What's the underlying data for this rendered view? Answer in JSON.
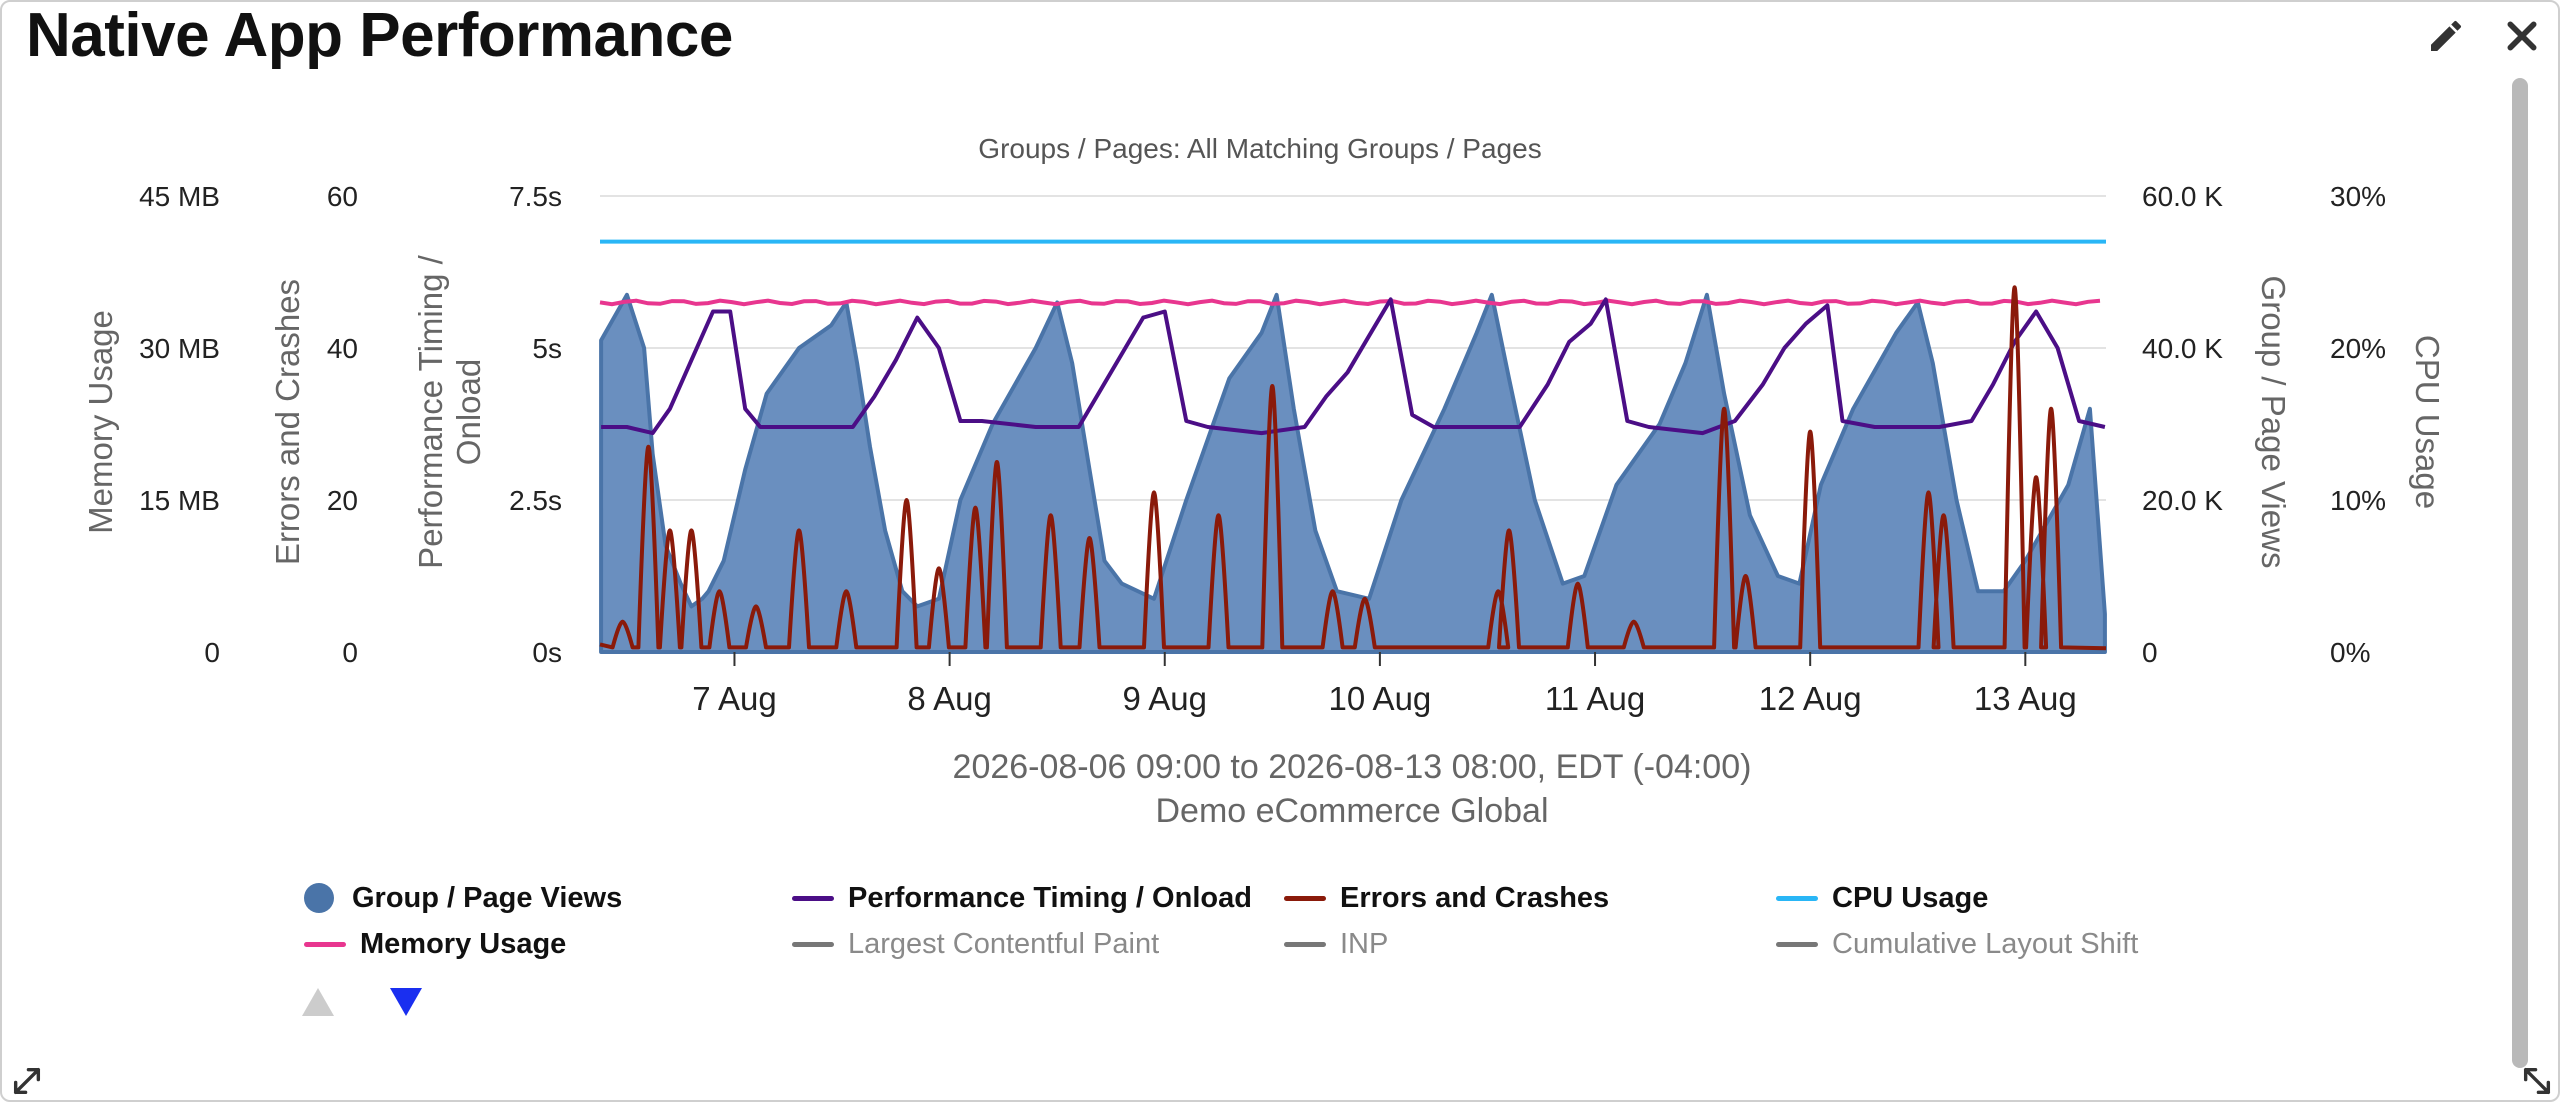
{
  "widget": {
    "title": "Native App Performance",
    "edit_icon": "pencil-icon",
    "close_icon": "close-icon"
  },
  "chart_data": {
    "type": "area",
    "title": "Groups / Pages: All Matching Groups / Pages",
    "date_range": "2026-08-06 09:00 to 2026-08-13 08:00, EDT (-04:00)",
    "subtitle": "Demo eCommerce Global",
    "x_ticks": [
      "7 Aug",
      "8 Aug",
      "9 Aug",
      "10 Aug",
      "11 Aug",
      "12 Aug",
      "13 Aug"
    ],
    "axes": {
      "memory": {
        "label": "Memory Usage",
        "ticks": [
          "0",
          "15 MB",
          "30 MB",
          "45 MB"
        ],
        "range": [
          0,
          45
        ]
      },
      "errors": {
        "label": "Errors and Crashes",
        "ticks": [
          "0",
          "20",
          "40",
          "60"
        ],
        "range": [
          0,
          60
        ]
      },
      "timing": {
        "label": "Performance Timing / Onload",
        "ticks": [
          "0s",
          "2.5s",
          "5s",
          "7.5s"
        ],
        "range": [
          0,
          7.5
        ]
      },
      "views": {
        "label": "Group / Page Views",
        "ticks": [
          "0",
          "20.0 K",
          "40.0 K",
          "60.0 K"
        ],
        "range": [
          0,
          60000
        ]
      },
      "cpu": {
        "label": "CPU Usage",
        "ticks": [
          "0%",
          "10%",
          "20%",
          "30%"
        ],
        "range": [
          0,
          30
        ]
      }
    },
    "grid": true,
    "legend_position": "bottom",
    "series": [
      {
        "name": "Group / Page Views",
        "axis": "views",
        "type": "area",
        "color": "#4a74a8",
        "active": true
      },
      {
        "name": "Performance Timing / Onload",
        "axis": "timing",
        "type": "line",
        "color": "#4b0e86",
        "active": true
      },
      {
        "name": "Errors and Crashes",
        "axis": "errors",
        "type": "line",
        "color": "#8a1a0a",
        "active": true
      },
      {
        "name": "CPU Usage",
        "axis": "cpu",
        "type": "line",
        "color": "#29b6f6",
        "active": true,
        "values_note": "constant",
        "value": 27
      },
      {
        "name": "Memory Usage",
        "axis": "memory",
        "type": "line",
        "color": "#e8368f",
        "active": true,
        "value": 34.5
      },
      {
        "name": "Largest Contentful Paint",
        "type": "line",
        "color": "#777777",
        "active": false
      },
      {
        "name": "INP",
        "type": "line",
        "color": "#777777",
        "active": false
      },
      {
        "name": "Cumulative Layout Shift",
        "type": "line",
        "color": "#777777",
        "active": false
      }
    ],
    "views_points_k": [
      [
        6.38,
        41
      ],
      [
        6.5,
        47
      ],
      [
        6.58,
        40
      ],
      [
        6.62,
        26
      ],
      [
        6.68,
        14
      ],
      [
        6.75,
        9
      ],
      [
        6.8,
        6
      ],
      [
        6.85,
        7
      ],
      [
        6.88,
        8
      ],
      [
        6.95,
        12
      ],
      [
        7.05,
        24
      ],
      [
        7.15,
        34
      ],
      [
        7.3,
        40
      ],
      [
        7.45,
        43
      ],
      [
        7.52,
        46
      ],
      [
        7.57,
        38
      ],
      [
        7.63,
        27
      ],
      [
        7.7,
        16
      ],
      [
        7.78,
        8
      ],
      [
        7.85,
        6
      ],
      [
        7.95,
        7
      ],
      [
        8.05,
        20
      ],
      [
        8.2,
        30
      ],
      [
        8.4,
        40
      ],
      [
        8.5,
        46
      ],
      [
        8.57,
        38
      ],
      [
        8.65,
        24
      ],
      [
        8.72,
        12
      ],
      [
        8.8,
        9
      ],
      [
        8.95,
        7
      ],
      [
        9.1,
        20
      ],
      [
        9.3,
        36
      ],
      [
        9.45,
        42
      ],
      [
        9.52,
        47
      ],
      [
        9.6,
        32
      ],
      [
        9.7,
        16
      ],
      [
        9.8,
        8
      ],
      [
        9.95,
        7
      ],
      [
        10.1,
        20
      ],
      [
        10.3,
        32
      ],
      [
        10.45,
        42
      ],
      [
        10.52,
        47
      ],
      [
        10.6,
        36
      ],
      [
        10.72,
        20
      ],
      [
        10.85,
        9
      ],
      [
        10.95,
        10
      ],
      [
        11.1,
        22
      ],
      [
        11.3,
        30
      ],
      [
        11.42,
        38
      ],
      [
        11.52,
        47
      ],
      [
        11.6,
        34
      ],
      [
        11.72,
        18
      ],
      [
        11.85,
        10
      ],
      [
        11.95,
        9
      ],
      [
        12.05,
        22
      ],
      [
        12.2,
        32
      ],
      [
        12.4,
        42
      ],
      [
        12.5,
        46
      ],
      [
        12.57,
        38
      ],
      [
        12.68,
        20
      ],
      [
        12.78,
        8
      ],
      [
        12.9,
        8
      ],
      [
        13.0,
        12
      ],
      [
        13.2,
        22
      ],
      [
        13.3,
        32
      ],
      [
        13.37,
        5
      ]
    ],
    "timing_points_s": [
      [
        6.38,
        3.7
      ],
      [
        6.5,
        3.7
      ],
      [
        6.62,
        3.6
      ],
      [
        6.7,
        4.0
      ],
      [
        6.8,
        4.8
      ],
      [
        6.9,
        5.6
      ],
      [
        6.98,
        5.6
      ],
      [
        7.05,
        4.0
      ],
      [
        7.12,
        3.7
      ],
      [
        7.3,
        3.7
      ],
      [
        7.55,
        3.7
      ],
      [
        7.65,
        4.2
      ],
      [
        7.75,
        4.8
      ],
      [
        7.85,
        5.5
      ],
      [
        7.95,
        5.0
      ],
      [
        8.05,
        3.8
      ],
      [
        8.15,
        3.8
      ],
      [
        8.4,
        3.7
      ],
      [
        8.6,
        3.7
      ],
      [
        8.7,
        4.3
      ],
      [
        8.8,
        4.9
      ],
      [
        8.9,
        5.5
      ],
      [
        9.0,
        5.6
      ],
      [
        9.1,
        3.8
      ],
      [
        9.2,
        3.7
      ],
      [
        9.45,
        3.6
      ],
      [
        9.65,
        3.7
      ],
      [
        9.75,
        4.2
      ],
      [
        9.85,
        4.6
      ],
      [
        9.95,
        5.2
      ],
      [
        10.05,
        5.8
      ],
      [
        10.15,
        3.9
      ],
      [
        10.25,
        3.7
      ],
      [
        10.5,
        3.7
      ],
      [
        10.65,
        3.7
      ],
      [
        10.78,
        4.4
      ],
      [
        10.88,
        5.1
      ],
      [
        10.98,
        5.4
      ],
      [
        11.05,
        5.8
      ],
      [
        11.15,
        3.8
      ],
      [
        11.25,
        3.7
      ],
      [
        11.5,
        3.6
      ],
      [
        11.65,
        3.8
      ],
      [
        11.78,
        4.4
      ],
      [
        11.88,
        5.0
      ],
      [
        11.98,
        5.4
      ],
      [
        12.08,
        5.7
      ],
      [
        12.15,
        3.8
      ],
      [
        12.3,
        3.7
      ],
      [
        12.6,
        3.7
      ],
      [
        12.75,
        3.8
      ],
      [
        12.85,
        4.4
      ],
      [
        12.95,
        5.1
      ],
      [
        13.05,
        5.6
      ],
      [
        13.15,
        5.0
      ],
      [
        13.25,
        3.8
      ],
      [
        13.37,
        3.7
      ]
    ],
    "errors_spikes": [
      [
        6.48,
        4
      ],
      [
        6.6,
        27
      ],
      [
        6.7,
        16
      ],
      [
        6.8,
        16
      ],
      [
        6.93,
        8
      ],
      [
        7.1,
        6
      ],
      [
        7.3,
        16
      ],
      [
        7.52,
        8
      ],
      [
        7.8,
        20
      ],
      [
        7.95,
        11
      ],
      [
        8.12,
        19
      ],
      [
        8.22,
        25
      ],
      [
        8.47,
        18
      ],
      [
        8.65,
        15
      ],
      [
        8.95,
        21
      ],
      [
        9.25,
        18
      ],
      [
        9.5,
        35
      ],
      [
        9.78,
        8
      ],
      [
        9.93,
        7
      ],
      [
        10.55,
        8
      ],
      [
        10.6,
        16
      ],
      [
        10.92,
        9
      ],
      [
        11.18,
        4
      ],
      [
        11.6,
        32
      ],
      [
        11.7,
        10
      ],
      [
        12.0,
        29
      ],
      [
        12.55,
        21
      ],
      [
        12.62,
        18
      ],
      [
        12.95,
        48
      ],
      [
        13.05,
        23
      ],
      [
        13.12,
        32
      ]
    ]
  },
  "legend": [
    {
      "label": "Group / Page Views",
      "color": "#4a74a8",
      "swatch": "dot",
      "active": true
    },
    {
      "label": "Performance Timing / Onload",
      "color": "#4b0e86",
      "swatch": "line",
      "active": true
    },
    {
      "label": "Errors and Crashes",
      "color": "#8a1a0a",
      "swatch": "line",
      "active": true
    },
    {
      "label": "CPU Usage",
      "color": "#29b6f6",
      "swatch": "line",
      "active": true
    },
    {
      "label": "Memory Usage",
      "color": "#e8368f",
      "swatch": "line",
      "active": true
    },
    {
      "label": "Largest Contentful Paint",
      "color": "#777777",
      "swatch": "line",
      "active": false
    },
    {
      "label": "INP",
      "color": "#777777",
      "swatch": "line",
      "active": false
    },
    {
      "label": "Cumulative Layout Shift",
      "color": "#777777",
      "swatch": "line",
      "active": false
    }
  ],
  "legend_nav": {
    "up_icon": "triangle-up-icon",
    "down_icon": "triangle-down-icon",
    "up_color": "#cccccc",
    "down_color": "#1a2ff0"
  }
}
